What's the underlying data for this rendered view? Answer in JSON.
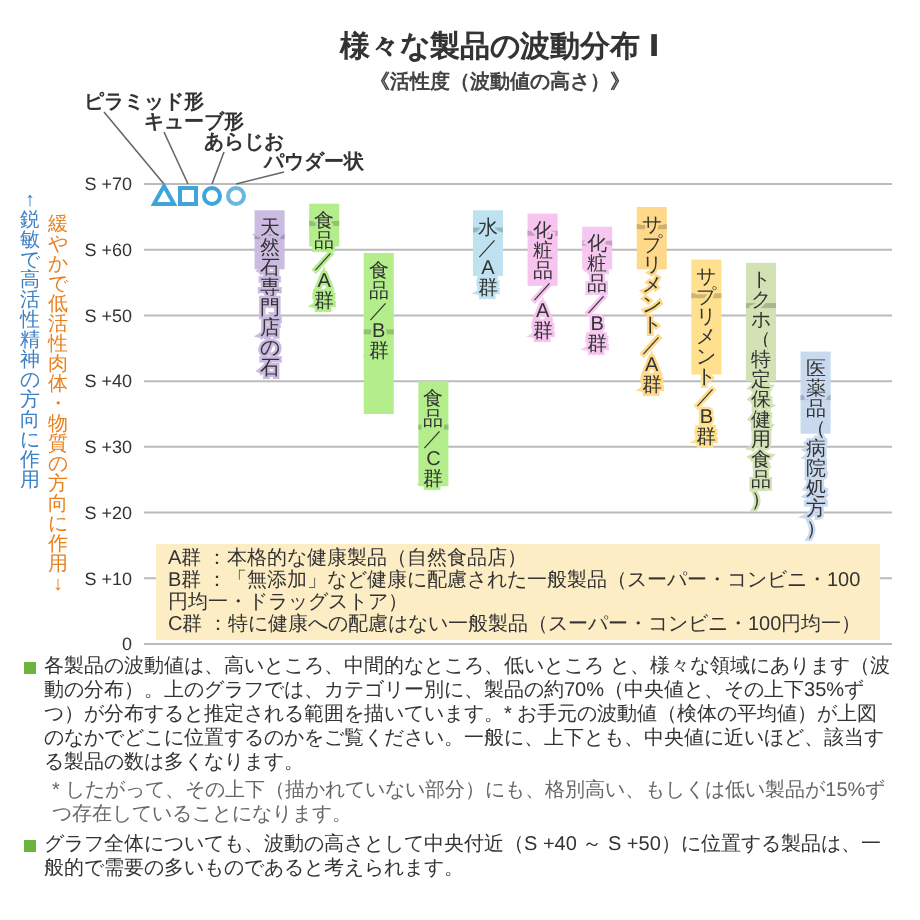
{
  "chart_data": {
    "type": "box",
    "title": "様々な製品の波動分布 Ⅰ",
    "subtitle": "《活性度（波動値の高さ）》",
    "ylabel": "↑鋭敏で高活性精神の方向に作用",
    "categories": [
      "天然石専門店の石",
      "食品／A群",
      "食品／B群",
      "食品／C群",
      "水／A群",
      "化粧品／A群",
      "化粧品／B群",
      "サプリメント／A群",
      "サプリメント／B群",
      "トクホ（特定保健用食品）",
      "医薬品（病院処方）"
    ],
    "boxes": [
      {
        "low": 57,
        "q1": 57,
        "median": 62,
        "q3": 66,
        "high": 66
      },
      {
        "low": 60.5,
        "q1": 60.5,
        "median": 64,
        "q3": 67,
        "high": 67
      },
      {
        "low": 35,
        "q1": 35,
        "median": 47.5,
        "q3": 59.5,
        "high": 59.5
      },
      {
        "low": 24,
        "q1": 24,
        "median": 33,
        "q3": 40,
        "high": 40
      },
      {
        "low": 56,
        "q1": 56,
        "median": 63,
        "q3": 66,
        "high": 66
      },
      {
        "low": 54.5,
        "q1": 54.5,
        "median": 62.5,
        "q3": 65.5,
        "high": 65.5
      },
      {
        "low": 57,
        "q1": 57,
        "median": 61,
        "q3": 63.5,
        "high": 63.5
      },
      {
        "low": 57,
        "q1": 57,
        "median": 63.5,
        "q3": 66.5,
        "high": 66.5
      },
      {
        "low": 41,
        "q1": 41,
        "median": 53,
        "q3": 58.5,
        "high": 58.5
      },
      {
        "low": 40,
        "q1": 40,
        "median": 51.5,
        "q3": 58,
        "high": 58
      },
      {
        "low": 32,
        "q1": 32,
        "median": 37.5,
        "q3": 44.5,
        "high": 44.5
      }
    ],
    "colors": [
      "#cbbbe0",
      "#b4ee8c",
      "#b4ee8c",
      "#b4ee8c",
      "#bfe2f0",
      "#f6c4ef",
      "#f6c8f1",
      "#ffd98a",
      "#ffe08e",
      "#d2e2b4",
      "#c9d9ee"
    ],
    "ylim": [
      0,
      70
    ],
    "yticks": [
      0,
      {
        "value": 10,
        "label": "S +10"
      },
      {
        "value": 20,
        "label": "S +20"
      },
      {
        "value": 30,
        "label": "S +30"
      },
      {
        "value": 40,
        "label": "S +40"
      },
      {
        "value": 50,
        "label": "S +50"
      },
      {
        "value": 60,
        "label": "S +60"
      },
      {
        "value": 70,
        "label": "S +70"
      }
    ],
    "grid": "y",
    "annotations": [
      "ピラミッド形",
      "キューブ形",
      "あらじお",
      "パウダー状",
      "緩やかで低活性肉体・物質の方向に作用↓",
      "A群 ：本格的な健康製品（自然食品店）",
      "B群 ：「無添加」など健康に配慮された一般製品（スーパー・コンビニ・100円均一・ドラッグストア）",
      "C群 ：特に健康への配慮はない一般製品（スーパー・コンビニ・100円均一）",
      "各製品の波動値は、高いところ、中間的なところ、低いところ と、様々な領域にあります（波動の分布）。上のグラフでは、カテゴリー別に、製品の約70%（中央値と、その上下35%ずつ）が分布すると推定される範囲を描いています。* お手元の波動値（検体の平均値）が上図のなかでどこに位置するのかをご覧ください。一般に、上下とも、中央値に近いほど、該当する製品の数は多くなります。",
      "* したがって、その上下（描かれていない部分）にも、格別高い、もしくは低い製品が15%ずつ存在していることになります。",
      "グラフ全体についても、波動の高さとして中央付近（S +40 ～ S +50）に位置する製品は、一般的で需要の多いものであると考えられます。"
    ]
  }
}
